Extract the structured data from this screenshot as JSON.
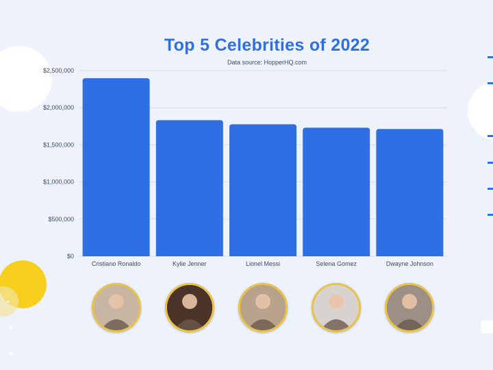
{
  "title": "Top 5 Celebrities of 2022",
  "subtitle": "Data source: HopperHQ.com",
  "chart_data": {
    "type": "bar",
    "categories": [
      "Cristiano Ronaldo",
      "Kylie Jenner",
      "Lionel Messi",
      "Selena Gomez",
      "Dwayne Johnson"
    ],
    "values": [
      2397000,
      1832000,
      1777000,
      1731000,
      1713000
    ],
    "ylim": [
      0,
      2500000
    ],
    "yticks": [
      0,
      500000,
      1000000,
      1500000,
      2000000,
      2500000
    ],
    "ytick_labels": [
      "$0",
      "$500,000",
      "$1,000,000",
      "$1,500,000",
      "$2,000,000",
      "$2,500,000"
    ],
    "grid": true,
    "bar_color": "#2f6fe4"
  },
  "photos": [
    {
      "icon": "group-family-photo",
      "bg": "#c8b6a3"
    },
    {
      "icon": "portrait-woman-photo",
      "bg": "#4a3328"
    },
    {
      "icon": "family-sofa-photo",
      "bg": "#b9a28c"
    },
    {
      "icon": "woman-waving-photo",
      "bg": "#d9d3cf"
    },
    {
      "icon": "man-smiling-photo",
      "bg": "#9b8f86"
    }
  ],
  "colors": {
    "background": "#eef3fb",
    "accent": "#2f6fe4",
    "gold": "#e9c246",
    "yellow_circle": "#f8cf1c"
  }
}
